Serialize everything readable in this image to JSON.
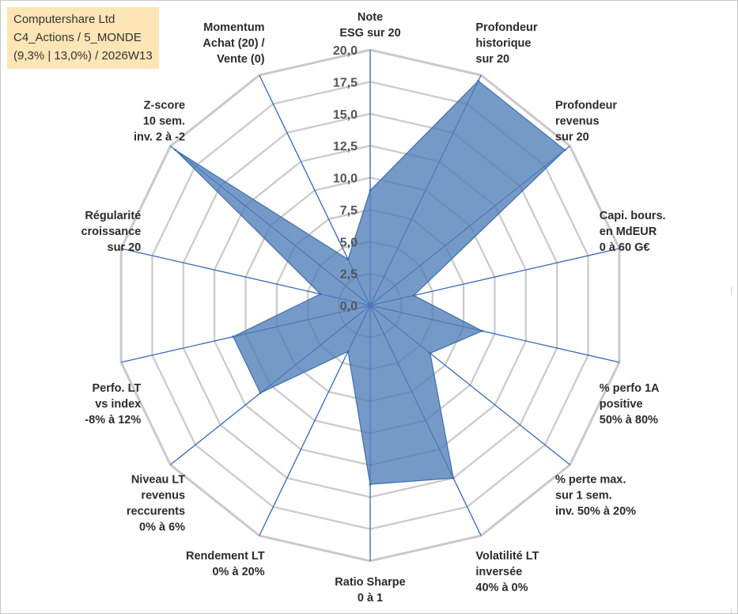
{
  "info": {
    "line1": "Computershare Ltd",
    "line2": "C4_Actions / 5_MONDE",
    "line3": "(9,3% | 13,0%) / 2026W13"
  },
  "colors": {
    "fill": "#4f7db8",
    "stroke": "#3f6ea9",
    "axis": "#3568b8",
    "grid": "#c9c9c9",
    "info_bg": "#fde5b5"
  },
  "chart_data": {
    "type": "radar",
    "title": "",
    "range": [
      0,
      20
    ],
    "ticks": [
      "0,0",
      "2,5",
      "5,0",
      "7,5",
      "10,0",
      "12,5",
      "15,0",
      "17,5",
      "20,0"
    ],
    "axes": [
      {
        "lines": [
          "Note",
          "ESG sur 20"
        ],
        "value": 9.0
      },
      {
        "lines": [
          "Profondeur",
          "historique",
          "sur 20"
        ],
        "value": 19.5
      },
      {
        "lines": [
          "Profondeur",
          "revenus",
          "sur 20"
        ],
        "value": 19.5
      },
      {
        "lines": [
          "Capi. bours.",
          "en MdEUR",
          "0 à 60 G€"
        ],
        "value": 3.5
      },
      {
        "lines": [
          "% perfo 1A",
          "positive",
          "50% à 80%"
        ],
        "value": 9.0
      },
      {
        "lines": [
          "% perte max.",
          "sur 1 sem.",
          "inv. 50% à 20%"
        ],
        "value": 6.0
      },
      {
        "lines": [
          "Volatilité LT",
          "inversée",
          "40% à 0%"
        ],
        "value": 15.0
      },
      {
        "lines": [
          "Ratio Sharpe",
          "0 à 1"
        ],
        "value": 14.0
      },
      {
        "lines": [
          "Rendement LT",
          "0% à 20%"
        ],
        "value": 4.0
      },
      {
        "lines": [
          "Niveau LT",
          "revenus",
          "reccurents",
          "0% à 6%"
        ],
        "value": 11.0
      },
      {
        "lines": [
          "Perfo. LT",
          "vs index",
          "-8% à 12%"
        ],
        "value": 11.0
      },
      {
        "lines": [
          "Régularité",
          "croissance",
          "sur 20"
        ],
        "value": 4.0
      },
      {
        "lines": [
          "Z-score",
          "10 sem.",
          "inv. 2 à -2"
        ],
        "value": 19.5
      },
      {
        "lines": [
          "Momentum",
          "Achat (20) /",
          "Vente (0)"
        ],
        "value": 4.0
      }
    ]
  }
}
